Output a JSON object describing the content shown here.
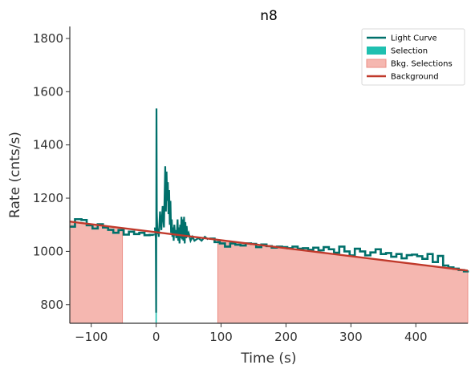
{
  "chart_data": {
    "type": "line",
    "title": "n8",
    "xlabel": "Time (s)",
    "ylabel": "Rate (cnts/s)",
    "xlim": [
      -133,
      480
    ],
    "ylim": [
      730,
      1845
    ],
    "xticks": [
      -100,
      0,
      100,
      200,
      300,
      400
    ],
    "yticks": [
      800,
      1000,
      1200,
      1400,
      1600,
      1800
    ],
    "xtick_labels": [
      "−100",
      "0",
      "100",
      "200",
      "300",
      "400"
    ],
    "ytick_labels": [
      "800",
      "1000",
      "1200",
      "1400",
      "1600",
      "1800"
    ],
    "grid": false,
    "legend_position": "top-right",
    "legend": [
      {
        "label": "Light Curve",
        "kind": "line",
        "color": "#00706b"
      },
      {
        "label": "Selection",
        "kind": "patch",
        "color": "#1fc0b0"
      },
      {
        "label": "Bkg. Selections",
        "kind": "patch",
        "color": "#f5b7b0",
        "edge": "#eb8f86"
      },
      {
        "label": "Background",
        "kind": "line",
        "color": "#c0392b"
      }
    ],
    "background_fit": {
      "x": [
        -133,
        480
      ],
      "y": [
        1112,
        928
      ]
    },
    "bkg_selections": [
      [
        -133,
        -52
      ],
      [
        95,
        480
      ]
    ],
    "source_selection": [
      -1,
      1
    ],
    "light_curve": {
      "pre_x": [
        -133,
        -125,
        -115,
        -107,
        -98,
        -90,
        -82,
        -74,
        -66,
        -58,
        -50,
        -42,
        -34,
        -26,
        -18,
        -10,
        -4
      ],
      "pre_y": [
        1093,
        1121,
        1118,
        1098,
        1086,
        1102,
        1090,
        1081,
        1070,
        1080,
        1063,
        1074,
        1065,
        1070,
        1061,
        1062,
        1060
      ],
      "burst_x": [
        -2,
        -0.5,
        0,
        0.5,
        1,
        2,
        3,
        4,
        6,
        8,
        10,
        12,
        14,
        15,
        16,
        17,
        18,
        19,
        20,
        21,
        22,
        23,
        24,
        25,
        26,
        27,
        28,
        29,
        30,
        31,
        32,
        33,
        34,
        35,
        36,
        37,
        38,
        39,
        40,
        41,
        42,
        43,
        44,
        45,
        46,
        47,
        48,
        50,
        53,
        56,
        59,
        62,
        65,
        70,
        75,
        80
      ],
      "burst_y": [
        1090,
        1050,
        770,
        1537,
        1145,
        1065,
        1085,
        1055,
        1150,
        1080,
        1170,
        1090,
        1320,
        1150,
        1300,
        1190,
        1260,
        1140,
        1230,
        1100,
        1190,
        1070,
        1120,
        1055,
        1090,
        1040,
        1100,
        1060,
        1080,
        1050,
        1070,
        1120,
        1040,
        1090,
        1030,
        1100,
        1050,
        1130,
        1045,
        1120,
        1040,
        1130,
        1030,
        1110,
        1050,
        1095,
        1060,
        1070,
        1040,
        1055,
        1040,
        1045,
        1050,
        1040,
        1055,
        1045
      ],
      "post_x": [
        82,
        90,
        98,
        106,
        114,
        122,
        130,
        138,
        146,
        154,
        162,
        170,
        178,
        186,
        194,
        202,
        210,
        218,
        226,
        234,
        242,
        250,
        258,
        266,
        274,
        282,
        290,
        298,
        306,
        314,
        322,
        330,
        338,
        346,
        354,
        362,
        370,
        378,
        386,
        394,
        402,
        410,
        418,
        426,
        434,
        442,
        450,
        458,
        466,
        474,
        480
      ],
      "post_y": [
        1048,
        1035,
        1030,
        1018,
        1030,
        1025,
        1022,
        1030,
        1028,
        1016,
        1026,
        1020,
        1014,
        1018,
        1016,
        1012,
        1018,
        1010,
        1012,
        1006,
        1014,
        1004,
        1016,
        1008,
        995,
        1018,
        1000,
        985,
        1010,
        1000,
        985,
        996,
        1008,
        990,
        994,
        980,
        990,
        974,
        986,
        988,
        982,
        972,
        990,
        960,
        983,
        947,
        940,
        935,
        930,
        925,
        928
      ]
    }
  }
}
